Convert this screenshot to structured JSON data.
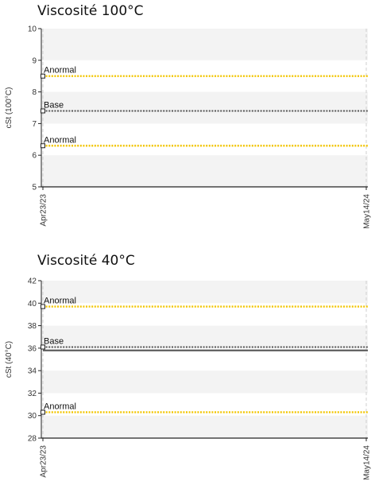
{
  "chart_data": [
    {
      "type": "line",
      "title": "Viscosité 100°C",
      "ylabel": "cSt (100°C)",
      "ylim": [
        5,
        10
      ],
      "yticks": [
        "5",
        "6",
        "7",
        "8",
        "9",
        "10"
      ],
      "x_categories": [
        "Apr23/23",
        "May14/24"
      ],
      "series": [
        {
          "name": "Anormal",
          "values": [
            8.5,
            8.5
          ],
          "color": "#f2c500",
          "style": "dotted"
        },
        {
          "name": "Base",
          "values": [
            7.4,
            7.4
          ],
          "color": "#555555",
          "style": "dotted"
        },
        {
          "name": "Anormal",
          "values": [
            6.3,
            6.3
          ],
          "color": "#f2c500",
          "style": "dotted"
        }
      ],
      "bands": [
        [
          5,
          6
        ],
        [
          7,
          8
        ],
        [
          9,
          10
        ]
      ],
      "grid": false
    },
    {
      "type": "line",
      "title": "Viscosité 40°C",
      "ylabel": "cSt (40°C)",
      "ylim": [
        28,
        42
      ],
      "yticks": [
        "28",
        "30",
        "32",
        "34",
        "36",
        "38",
        "40",
        "42"
      ],
      "x_categories": [
        "Apr23/23",
        "May14/24"
      ],
      "series": [
        {
          "name": "Anormal",
          "values": [
            39.7,
            39.7
          ],
          "color": "#f2c500",
          "style": "dotted"
        },
        {
          "name": "Base",
          "values": [
            36.1,
            36.1
          ],
          "color": "#555555",
          "style": "dotted"
        },
        {
          "name": "",
          "values": [
            35.8,
            35.8
          ],
          "color": "#555555",
          "style": "solid"
        },
        {
          "name": "Anormal",
          "values": [
            30.3,
            30.3
          ],
          "color": "#f2c500",
          "style": "dotted"
        }
      ],
      "bands": [
        [
          28,
          30
        ],
        [
          32,
          34
        ],
        [
          36,
          38
        ],
        [
          40,
          42
        ]
      ],
      "grid": false
    }
  ]
}
